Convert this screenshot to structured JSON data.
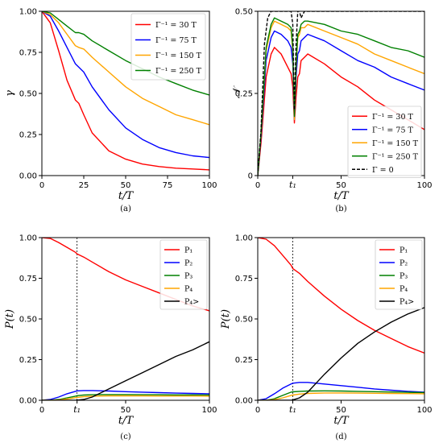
{
  "chart_data": [
    {
      "panel": "(a)",
      "type": "line",
      "xlabel": "t/T",
      "ylabel": "γ",
      "xlim": [
        0,
        100
      ],
      "ylim": [
        0,
        1
      ],
      "xticks": [
        "0",
        "25",
        "50",
        "75",
        "100"
      ],
      "yticks": [
        "0.00",
        "0.25",
        "0.50",
        "0.75",
        "1.00"
      ],
      "legend_position": "top-right",
      "x": [
        0,
        5,
        10,
        15,
        20,
        22,
        25,
        30,
        40,
        50,
        60,
        70,
        80,
        90,
        100
      ],
      "series": [
        {
          "name": "Γ⁻¹ = 30 T",
          "color": "#ff0000",
          "values": [
            1.0,
            0.93,
            0.76,
            0.58,
            0.46,
            0.44,
            0.37,
            0.26,
            0.15,
            0.1,
            0.07,
            0.055,
            0.045,
            0.04,
            0.035
          ]
        },
        {
          "name": "Γ⁻¹ = 75 T",
          "color": "#0000ff",
          "values": [
            1.0,
            0.97,
            0.88,
            0.78,
            0.68,
            0.66,
            0.63,
            0.54,
            0.4,
            0.29,
            0.22,
            0.17,
            0.14,
            0.12,
            0.11
          ]
        },
        {
          "name": "Γ⁻¹ = 150 T",
          "color": "#ffa500",
          "values": [
            1.0,
            0.98,
            0.93,
            0.86,
            0.79,
            0.78,
            0.77,
            0.72,
            0.63,
            0.54,
            0.47,
            0.42,
            0.37,
            0.34,
            0.31
          ]
        },
        {
          "name": "Γ⁻¹ = 250 T",
          "color": "#008000",
          "values": [
            1.0,
            0.99,
            0.95,
            0.91,
            0.87,
            0.87,
            0.86,
            0.82,
            0.76,
            0.7,
            0.65,
            0.6,
            0.56,
            0.52,
            0.49
          ]
        }
      ]
    },
    {
      "panel": "(b)",
      "type": "line",
      "xlabel": "t/T",
      "ylabel": "𝒩",
      "xlim": [
        0,
        100
      ],
      "ylim": [
        0,
        0.5
      ],
      "xticks": [
        "0",
        "t₁",
        "50",
        "100"
      ],
      "yticks": [
        "0",
        "0.25",
        "0.50"
      ],
      "legend_position": "bottom-right",
      "series": [
        {
          "name": "Γ⁻¹ = 30 T",
          "color": "#ff0000",
          "dash": "",
          "x": [
            0,
            2,
            5,
            8,
            10,
            14,
            18,
            20,
            21,
            22,
            23,
            24,
            25,
            26,
            28,
            30,
            40,
            50,
            60,
            70,
            80,
            90,
            100
          ],
          "values": [
            0.0,
            0.1,
            0.3,
            0.37,
            0.39,
            0.37,
            0.33,
            0.31,
            0.27,
            0.16,
            0.24,
            0.3,
            0.31,
            0.35,
            0.36,
            0.37,
            0.34,
            0.3,
            0.27,
            0.23,
            0.2,
            0.17,
            0.14
          ]
        },
        {
          "name": "Γ⁻¹ = 75 T",
          "color": "#0000ff",
          "dash": "",
          "x": [
            0,
            2,
            5,
            8,
            10,
            14,
            18,
            20,
            21,
            22,
            23,
            24,
            25,
            26,
            28,
            30,
            40,
            50,
            60,
            70,
            80,
            90,
            100
          ],
          "values": [
            0.0,
            0.12,
            0.35,
            0.42,
            0.44,
            0.43,
            0.41,
            0.39,
            0.34,
            0.17,
            0.3,
            0.37,
            0.38,
            0.41,
            0.42,
            0.43,
            0.41,
            0.38,
            0.35,
            0.33,
            0.3,
            0.28,
            0.26
          ]
        },
        {
          "name": "Γ⁻¹ = 150 T",
          "color": "#ffa500",
          "dash": "",
          "x": [
            0,
            2,
            5,
            8,
            10,
            14,
            18,
            20,
            21,
            22,
            23,
            24,
            25,
            26,
            28,
            30,
            40,
            50,
            60,
            70,
            80,
            90,
            100
          ],
          "values": [
            0.0,
            0.13,
            0.38,
            0.45,
            0.47,
            0.46,
            0.45,
            0.44,
            0.38,
            0.17,
            0.33,
            0.42,
            0.43,
            0.45,
            0.45,
            0.46,
            0.44,
            0.42,
            0.4,
            0.37,
            0.35,
            0.33,
            0.31
          ]
        },
        {
          "name": "Γ⁻¹ = 250 T",
          "color": "#008000",
          "dash": "",
          "x": [
            0,
            2,
            5,
            8,
            10,
            14,
            18,
            20,
            21,
            22,
            23,
            24,
            25,
            26,
            28,
            30,
            40,
            50,
            60,
            70,
            80,
            90,
            100
          ],
          "values": [
            0.0,
            0.13,
            0.39,
            0.46,
            0.48,
            0.47,
            0.46,
            0.45,
            0.39,
            0.18,
            0.34,
            0.43,
            0.44,
            0.46,
            0.47,
            0.47,
            0.46,
            0.44,
            0.43,
            0.41,
            0.39,
            0.38,
            0.36
          ]
        },
        {
          "name": "Γ = 0",
          "color": "#000000",
          "dash": "4,2",
          "x": [
            0,
            2,
            4,
            6,
            8,
            10,
            18,
            20,
            21,
            22,
            23,
            24,
            25,
            26,
            28,
            100
          ],
          "values": [
            0.0,
            0.14,
            0.4,
            0.48,
            0.5,
            0.5,
            0.5,
            0.5,
            0.46,
            0.2,
            0.4,
            0.5,
            0.5,
            0.48,
            0.5,
            0.5
          ]
        }
      ]
    },
    {
      "panel": "(c)",
      "type": "line",
      "xlabel": "t/T",
      "ylabel": "P(t)",
      "xlim": [
        0,
        100
      ],
      "ylim": [
        0,
        1
      ],
      "xticks": [
        "0",
        "t₁",
        "50",
        "100"
      ],
      "yticks": [
        "0.00",
        "0.25",
        "0.50",
        "0.75",
        "1.00"
      ],
      "legend_position": "top-right",
      "vline_x": 21,
      "x": [
        0,
        5,
        10,
        15,
        20,
        21,
        25,
        30,
        40,
        50,
        60,
        70,
        80,
        90,
        100
      ],
      "series": [
        {
          "name": "P₁",
          "color": "#ff0000",
          "values": [
            1.0,
            0.995,
            0.97,
            0.94,
            0.91,
            0.9,
            0.88,
            0.85,
            0.79,
            0.74,
            0.7,
            0.66,
            0.62,
            0.58,
            0.55
          ]
        },
        {
          "name": "P₂",
          "color": "#0000ff",
          "values": [
            0.0,
            0.005,
            0.02,
            0.04,
            0.055,
            0.058,
            0.06,
            0.06,
            0.057,
            0.053,
            0.05,
            0.047,
            0.044,
            0.042,
            0.04
          ]
        },
        {
          "name": "P₃",
          "color": "#008000",
          "values": [
            0.0,
            0.0,
            0.005,
            0.015,
            0.025,
            0.028,
            0.032,
            0.034,
            0.035,
            0.035,
            0.034,
            0.034,
            0.033,
            0.033,
            0.032
          ]
        },
        {
          "name": "P₄",
          "color": "#ffa500",
          "values": [
            0.0,
            0.0,
            0.002,
            0.008,
            0.016,
            0.018,
            0.022,
            0.025,
            0.027,
            0.027,
            0.027,
            0.026,
            0.026,
            0.026,
            0.025
          ]
        },
        {
          "name": "P₄>",
          "color": "#000000",
          "values": [
            0.0,
            0.0,
            0.0,
            0.0,
            0.0,
            0.001,
            0.005,
            0.02,
            0.07,
            0.12,
            0.17,
            0.22,
            0.27,
            0.31,
            0.36
          ]
        }
      ]
    },
    {
      "panel": "(d)",
      "type": "line",
      "xlabel": "t/T",
      "ylabel": "P(t)",
      "xlim": [
        0,
        100
      ],
      "ylim": [
        0,
        1
      ],
      "xticks": [
        "0",
        "t₁",
        "50",
        "100"
      ],
      "yticks": [
        "0.00",
        "0.25",
        "0.50",
        "0.75",
        "1.00"
      ],
      "legend_position": "top-right",
      "vline_x": 21,
      "x": [
        0,
        5,
        10,
        15,
        20,
        21,
        25,
        30,
        40,
        50,
        60,
        70,
        80,
        90,
        100
      ],
      "series": [
        {
          "name": "P₁",
          "color": "#ff0000",
          "values": [
            1.0,
            0.99,
            0.95,
            0.89,
            0.83,
            0.81,
            0.78,
            0.73,
            0.64,
            0.56,
            0.49,
            0.43,
            0.38,
            0.33,
            0.29
          ]
        },
        {
          "name": "P₂",
          "color": "#0000ff",
          "values": [
            0.0,
            0.01,
            0.04,
            0.075,
            0.1,
            0.105,
            0.11,
            0.11,
            0.1,
            0.09,
            0.08,
            0.07,
            0.062,
            0.055,
            0.05
          ]
        },
        {
          "name": "P₃",
          "color": "#008000",
          "values": [
            0.0,
            0.0,
            0.01,
            0.03,
            0.05,
            0.052,
            0.055,
            0.057,
            0.058,
            0.057,
            0.055,
            0.053,
            0.051,
            0.049,
            0.047
          ]
        },
        {
          "name": "P₄",
          "color": "#ffa500",
          "values": [
            0.0,
            0.0,
            0.004,
            0.015,
            0.03,
            0.032,
            0.038,
            0.042,
            0.045,
            0.045,
            0.044,
            0.043,
            0.042,
            0.041,
            0.04
          ]
        },
        {
          "name": "P₄>",
          "color": "#000000",
          "values": [
            0.0,
            0.0,
            0.0,
            0.0,
            0.0,
            0.002,
            0.015,
            0.05,
            0.16,
            0.26,
            0.35,
            0.42,
            0.48,
            0.53,
            0.57
          ]
        }
      ]
    }
  ]
}
